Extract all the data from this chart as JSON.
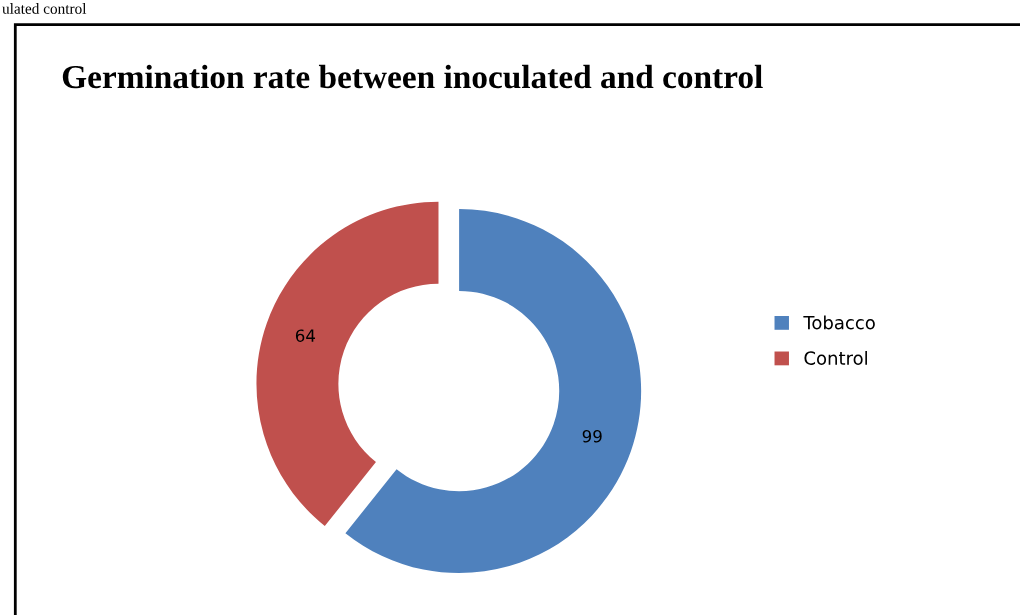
{
  "chart_data": {
    "type": "donut",
    "title": "Germination rate between inoculated and control",
    "categories": [
      "Tobacco",
      "Control"
    ],
    "values": [
      99,
      64
    ],
    "colors": [
      "#4f81bd",
      "#c0504d"
    ],
    "data_labels": true,
    "legend": "right",
    "annotations": [
      "ulated control"
    ]
  }
}
